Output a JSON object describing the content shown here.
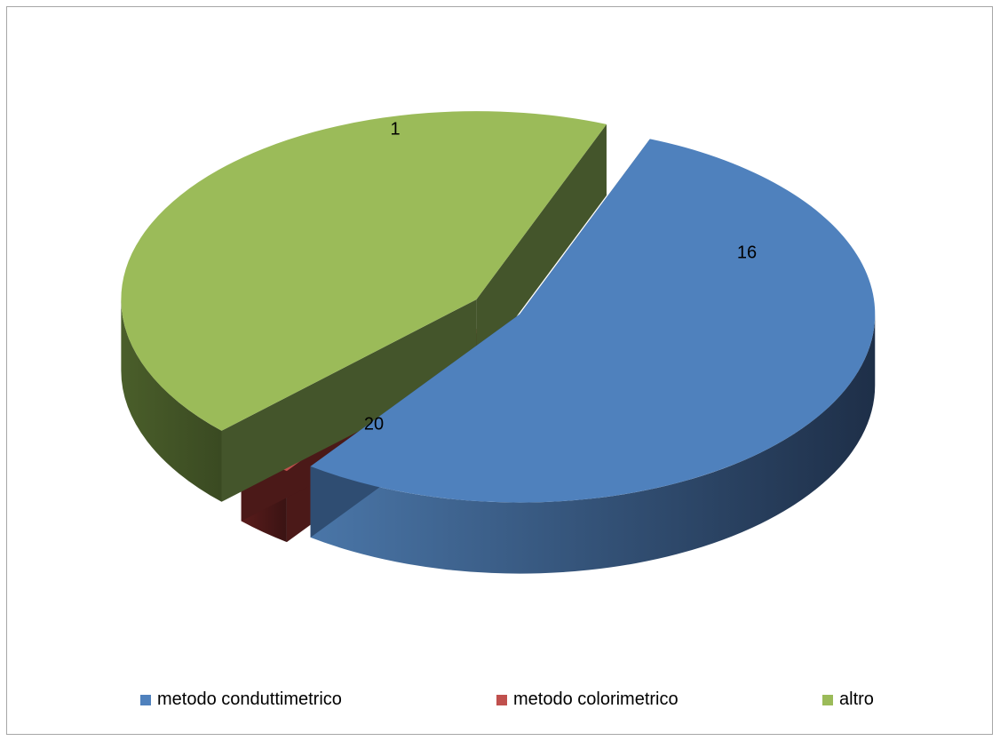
{
  "chart_data": {
    "type": "pie",
    "style": "3d-exploded",
    "categories": [
      "metodo conduttimetrico",
      "metodo colorimetrico",
      "altro"
    ],
    "values": [
      20,
      1,
      16
    ],
    "data_labels": [
      "20",
      "1",
      "16"
    ],
    "colors": [
      "#4f81bd",
      "#c0504d",
      "#9bbb59"
    ],
    "legend_position": "bottom",
    "title": ""
  }
}
